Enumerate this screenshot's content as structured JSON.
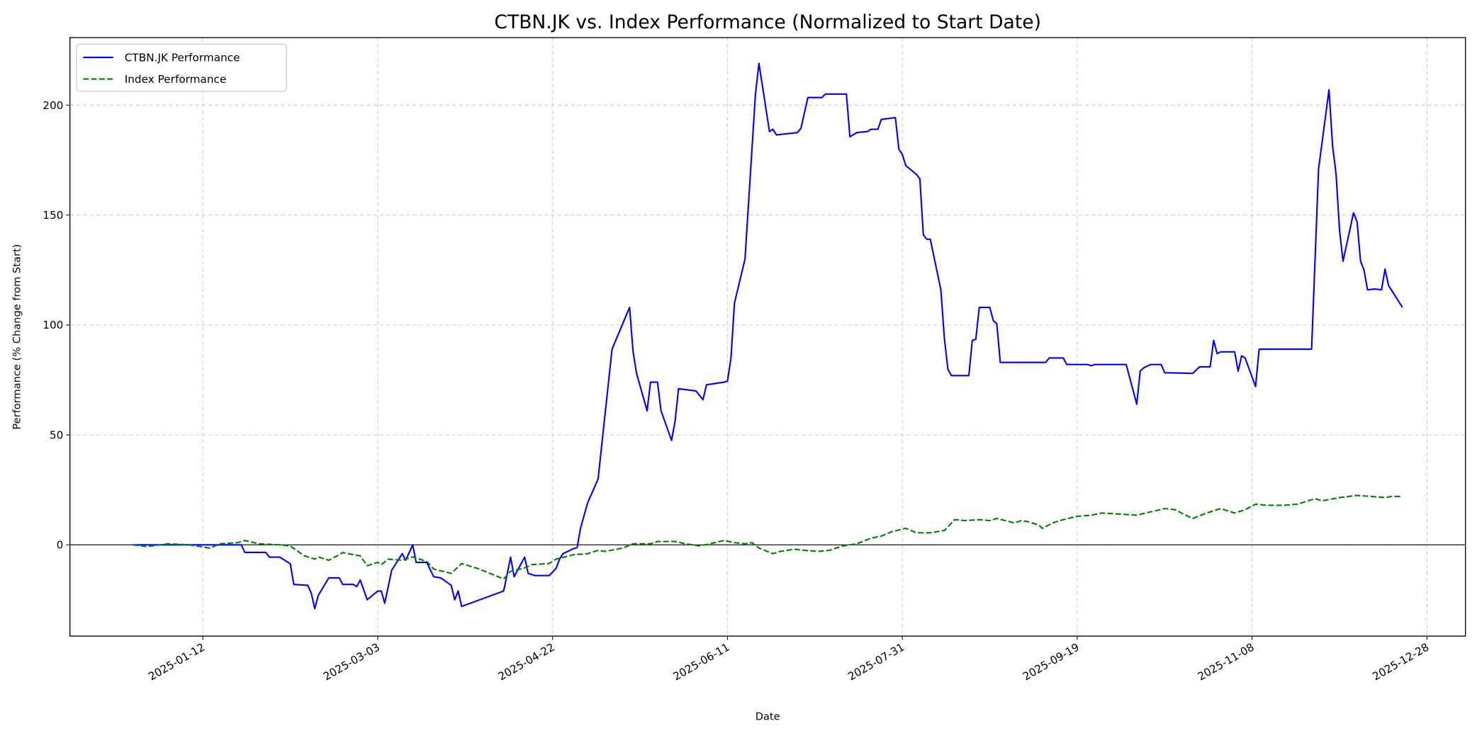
{
  "chart_data": {
    "type": "line",
    "title": "CTBN.JK vs. Index Performance (Normalized to Start Date)",
    "xlabel": "Date",
    "ylabel": "Performance (% Change from Start)",
    "xlim": [
      "2024-12-05",
      "2026-01-08"
    ],
    "ylim": [
      -41.5,
      230.7
    ],
    "x_ticks": [
      "2025-01-12",
      "2025-03-03",
      "2025-04-22",
      "2025-06-11",
      "2025-07-31",
      "2025-09-19",
      "2025-11-08",
      "2025-12-28"
    ],
    "y_ticks": [
      0,
      50,
      100,
      150,
      200
    ],
    "grid": true,
    "zero_line": true,
    "legend_position": "top-left",
    "series": [
      {
        "name": "CTBN.JK Performance",
        "color": "#0000ff",
        "style": "solid",
        "points": [
          [
            "2024-12-23",
            0
          ],
          [
            "2025-01-23",
            0
          ],
          [
            "2025-01-24",
            -3.4
          ],
          [
            "2025-01-30",
            -3.4
          ],
          [
            "2025-01-31",
            -5.6
          ],
          [
            "2025-02-03",
            -5.6
          ],
          [
            "2025-02-06",
            -8.6
          ],
          [
            "2025-02-07",
            -18
          ],
          [
            "2025-02-11",
            -18.4
          ],
          [
            "2025-02-12",
            -22
          ],
          [
            "2025-02-13",
            -29
          ],
          [
            "2025-02-14",
            -23
          ],
          [
            "2025-02-17",
            -15
          ],
          [
            "2025-02-20",
            -15
          ],
          [
            "2025-02-21",
            -18
          ],
          [
            "2025-02-24",
            -18
          ],
          [
            "2025-02-25",
            -19
          ],
          [
            "2025-02-26",
            -16
          ],
          [
            "2025-02-28",
            -25
          ],
          [
            "2025-03-03",
            -21
          ],
          [
            "2025-03-04",
            -21
          ],
          [
            "2025-03-05",
            -26.5
          ],
          [
            "2025-03-07",
            -11.5
          ],
          [
            "2025-03-10",
            -4
          ],
          [
            "2025-03-11",
            -7
          ],
          [
            "2025-03-13",
            0
          ],
          [
            "2025-03-14",
            -8
          ],
          [
            "2025-03-17",
            -8
          ],
          [
            "2025-03-19",
            -14.5
          ],
          [
            "2025-03-21",
            -15
          ],
          [
            "2025-03-24",
            -18.4
          ],
          [
            "2025-03-25",
            -25
          ],
          [
            "2025-03-26",
            -21
          ],
          [
            "2025-03-27",
            -28
          ],
          [
            "2025-04-08",
            -21
          ],
          [
            "2025-04-10",
            -5.6
          ],
          [
            "2025-04-11",
            -14.5
          ],
          [
            "2025-04-14",
            -5.6
          ],
          [
            "2025-04-15",
            -13
          ],
          [
            "2025-04-17",
            -14
          ],
          [
            "2025-04-21",
            -14
          ],
          [
            "2025-04-23",
            -10.7
          ],
          [
            "2025-04-24",
            -6.4
          ],
          [
            "2025-04-25",
            -4
          ],
          [
            "2025-04-28",
            -1.7
          ],
          [
            "2025-04-29",
            -1.3
          ],
          [
            "2025-04-30",
            7.7
          ],
          [
            "2025-05-02",
            19
          ],
          [
            "2025-05-05",
            30
          ],
          [
            "2025-05-09",
            89
          ],
          [
            "2025-05-14",
            108
          ],
          [
            "2025-05-15",
            88
          ],
          [
            "2025-05-16",
            78
          ],
          [
            "2025-05-19",
            61
          ],
          [
            "2025-05-20",
            74
          ],
          [
            "2025-05-22",
            74
          ],
          [
            "2025-05-23",
            61
          ],
          [
            "2025-05-26",
            47.5
          ],
          [
            "2025-05-27",
            56
          ],
          [
            "2025-05-28",
            71
          ],
          [
            "2025-06-02",
            70
          ],
          [
            "2025-06-04",
            66
          ],
          [
            "2025-06-05",
            72.8
          ],
          [
            "2025-06-10",
            74
          ],
          [
            "2025-06-11",
            74.5
          ],
          [
            "2025-06-12",
            85
          ],
          [
            "2025-06-13",
            110
          ],
          [
            "2025-06-16",
            130
          ],
          [
            "2025-06-19",
            205
          ],
          [
            "2025-06-20",
            219
          ],
          [
            "2025-06-23",
            188
          ],
          [
            "2025-06-24",
            189
          ],
          [
            "2025-06-25",
            186.5
          ],
          [
            "2025-07-01",
            187.5
          ],
          [
            "2025-07-02",
            189.5
          ],
          [
            "2025-07-04",
            203.5
          ],
          [
            "2025-07-08",
            203.5
          ],
          [
            "2025-07-09",
            205
          ],
          [
            "2025-07-15",
            205
          ],
          [
            "2025-07-16",
            185.6
          ],
          [
            "2025-07-18",
            187.5
          ],
          [
            "2025-07-21",
            188
          ],
          [
            "2025-07-22",
            189
          ],
          [
            "2025-07-24",
            189
          ],
          [
            "2025-07-25",
            193.5
          ],
          [
            "2025-07-29",
            194.3
          ],
          [
            "2025-07-30",
            180
          ],
          [
            "2025-07-31",
            177.5
          ],
          [
            "2025-08-01",
            172.5
          ],
          [
            "2025-08-04",
            168.5
          ],
          [
            "2025-08-05",
            166.5
          ],
          [
            "2025-08-06",
            141
          ],
          [
            "2025-08-07",
            139
          ],
          [
            "2025-08-08",
            139
          ],
          [
            "2025-08-11",
            116
          ],
          [
            "2025-08-12",
            94
          ],
          [
            "2025-08-13",
            80
          ],
          [
            "2025-08-14",
            77
          ],
          [
            "2025-08-19",
            77
          ],
          [
            "2025-08-20",
            93
          ],
          [
            "2025-08-21",
            93.5
          ],
          [
            "2025-08-22",
            108
          ],
          [
            "2025-08-25",
            108
          ],
          [
            "2025-08-26",
            102
          ],
          [
            "2025-08-27",
            100.6
          ],
          [
            "2025-08-28",
            83
          ],
          [
            "2025-09-10",
            83
          ],
          [
            "2025-09-11",
            85
          ],
          [
            "2025-09-15",
            85
          ],
          [
            "2025-09-16",
            82
          ],
          [
            "2025-09-22",
            82
          ],
          [
            "2025-09-23",
            81.5
          ],
          [
            "2025-09-24",
            82
          ],
          [
            "2025-10-03",
            82
          ],
          [
            "2025-10-06",
            64
          ],
          [
            "2025-10-07",
            79
          ],
          [
            "2025-10-08",
            80.5
          ],
          [
            "2025-10-10",
            82
          ],
          [
            "2025-10-13",
            82
          ],
          [
            "2025-10-14",
            78.3
          ],
          [
            "2025-10-22",
            78
          ],
          [
            "2025-10-24",
            81
          ],
          [
            "2025-10-27",
            81
          ],
          [
            "2025-10-28",
            93
          ],
          [
            "2025-10-29",
            87
          ],
          [
            "2025-10-30",
            87.8
          ],
          [
            "2025-11-03",
            87.8
          ],
          [
            "2025-11-04",
            79
          ],
          [
            "2025-11-05",
            86
          ],
          [
            "2025-11-06",
            85
          ],
          [
            "2025-11-09",
            72
          ],
          [
            "2025-11-10",
            89
          ],
          [
            "2025-11-25",
            89
          ],
          [
            "2025-11-27",
            171
          ],
          [
            "2025-11-30",
            207
          ],
          [
            "2025-12-01",
            181.5
          ],
          [
            "2025-12-02",
            168.6
          ],
          [
            "2025-12-03",
            143
          ],
          [
            "2025-12-04",
            129
          ],
          [
            "2025-12-07",
            151
          ],
          [
            "2025-12-08",
            147
          ],
          [
            "2025-12-09",
            129
          ],
          [
            "2025-12-10",
            125
          ],
          [
            "2025-12-11",
            116
          ],
          [
            "2025-12-13",
            116.4
          ],
          [
            "2025-12-15",
            116
          ],
          [
            "2025-12-16",
            125.4
          ],
          [
            "2025-12-17",
            118
          ],
          [
            "2025-12-21",
            108
          ]
        ]
      },
      {
        "name": "Index Performance",
        "color": "#008000",
        "style": "dashed",
        "points": [
          [
            "2024-12-23",
            0
          ],
          [
            "2024-12-27",
            -0.8
          ],
          [
            "2025-01-02",
            0.5
          ],
          [
            "2025-01-08",
            0
          ],
          [
            "2025-01-14",
            -1.5
          ],
          [
            "2025-01-17",
            0.5
          ],
          [
            "2025-01-22",
            1
          ],
          [
            "2025-01-24",
            2
          ],
          [
            "2025-01-28",
            0.5
          ],
          [
            "2025-02-03",
            0
          ],
          [
            "2025-02-06",
            -0.5
          ],
          [
            "2025-02-10",
            -5
          ],
          [
            "2025-02-13",
            -6.5
          ],
          [
            "2025-02-14",
            -5.5
          ],
          [
            "2025-02-17",
            -7
          ],
          [
            "2025-02-20",
            -4.5
          ],
          [
            "2025-02-21",
            -3.5
          ],
          [
            "2025-02-24",
            -4.5
          ],
          [
            "2025-02-26",
            -5
          ],
          [
            "2025-02-28",
            -9.5
          ],
          [
            "2025-03-03",
            -8
          ],
          [
            "2025-03-04",
            -9
          ],
          [
            "2025-03-06",
            -6.5
          ],
          [
            "2025-03-10",
            -7
          ],
          [
            "2025-03-13",
            -5.5
          ],
          [
            "2025-03-17",
            -7.5
          ],
          [
            "2025-03-19",
            -11
          ],
          [
            "2025-03-24",
            -13
          ],
          [
            "2025-03-27",
            -8.5
          ],
          [
            "2025-04-01",
            -11
          ],
          [
            "2025-04-08",
            -15.5
          ],
          [
            "2025-04-10",
            -12
          ],
          [
            "2025-04-14",
            -10.5
          ],
          [
            "2025-04-16",
            -9
          ],
          [
            "2025-04-21",
            -8.5
          ],
          [
            "2025-04-23",
            -6.5
          ],
          [
            "2025-04-28",
            -4.5
          ],
          [
            "2025-05-02",
            -4
          ],
          [
            "2025-05-05",
            -2.5
          ],
          [
            "2025-05-07",
            -3
          ],
          [
            "2025-05-12",
            -1.5
          ],
          [
            "2025-05-15",
            0.5
          ],
          [
            "2025-05-20",
            0.5
          ],
          [
            "2025-05-22",
            1.5
          ],
          [
            "2025-05-27",
            1.5
          ],
          [
            "2025-05-30",
            0.5
          ],
          [
            "2025-06-03",
            -0.5
          ],
          [
            "2025-06-06",
            0.5
          ],
          [
            "2025-06-10",
            2
          ],
          [
            "2025-06-13",
            1
          ],
          [
            "2025-06-16",
            0.5
          ],
          [
            "2025-06-18",
            1
          ],
          [
            "2025-06-20",
            -1.5
          ],
          [
            "2025-06-24",
            -4
          ],
          [
            "2025-06-26",
            -3
          ],
          [
            "2025-06-30",
            -2
          ],
          [
            "2025-07-03",
            -2.5
          ],
          [
            "2025-07-07",
            -3
          ],
          [
            "2025-07-10",
            -2.5
          ],
          [
            "2025-07-14",
            -0.5
          ],
          [
            "2025-07-18",
            0.5
          ],
          [
            "2025-07-22",
            3
          ],
          [
            "2025-07-25",
            4
          ],
          [
            "2025-07-28",
            6
          ],
          [
            "2025-08-01",
            7.5
          ],
          [
            "2025-08-04",
            5.5
          ],
          [
            "2025-08-08",
            5.5
          ],
          [
            "2025-08-12",
            6.5
          ],
          [
            "2025-08-15",
            11.5
          ],
          [
            "2025-08-18",
            11
          ],
          [
            "2025-08-22",
            11.5
          ],
          [
            "2025-08-25",
            11
          ],
          [
            "2025-08-27",
            12
          ],
          [
            "2025-09-01",
            10
          ],
          [
            "2025-09-03",
            11
          ],
          [
            "2025-09-05",
            10.5
          ],
          [
            "2025-09-08",
            9
          ],
          [
            "2025-09-09",
            7.5
          ],
          [
            "2025-09-12",
            10
          ],
          [
            "2025-09-15",
            11.5
          ],
          [
            "2025-09-19",
            13
          ],
          [
            "2025-09-23",
            13.5
          ],
          [
            "2025-09-26",
            14.5
          ],
          [
            "2025-10-01",
            14
          ],
          [
            "2025-10-06",
            13.5
          ],
          [
            "2025-10-10",
            15
          ],
          [
            "2025-10-14",
            16.5
          ],
          [
            "2025-10-17",
            16
          ],
          [
            "2025-10-20",
            13.5
          ],
          [
            "2025-10-22",
            12
          ],
          [
            "2025-10-26",
            14.5
          ],
          [
            "2025-10-30",
            16.5
          ],
          [
            "2025-11-03",
            14.5
          ],
          [
            "2025-11-06",
            16
          ],
          [
            "2025-11-09",
            18.5
          ],
          [
            "2025-11-12",
            18
          ],
          [
            "2025-11-17",
            18
          ],
          [
            "2025-11-21",
            18.5
          ],
          [
            "2025-11-26",
            21
          ],
          [
            "2025-11-28",
            20
          ],
          [
            "2025-12-03",
            21.5
          ],
          [
            "2025-12-08",
            22.5
          ],
          [
            "2025-12-12",
            22
          ],
          [
            "2025-12-16",
            21.5
          ],
          [
            "2025-12-18",
            22
          ],
          [
            "2025-12-21",
            22
          ]
        ]
      }
    ]
  }
}
